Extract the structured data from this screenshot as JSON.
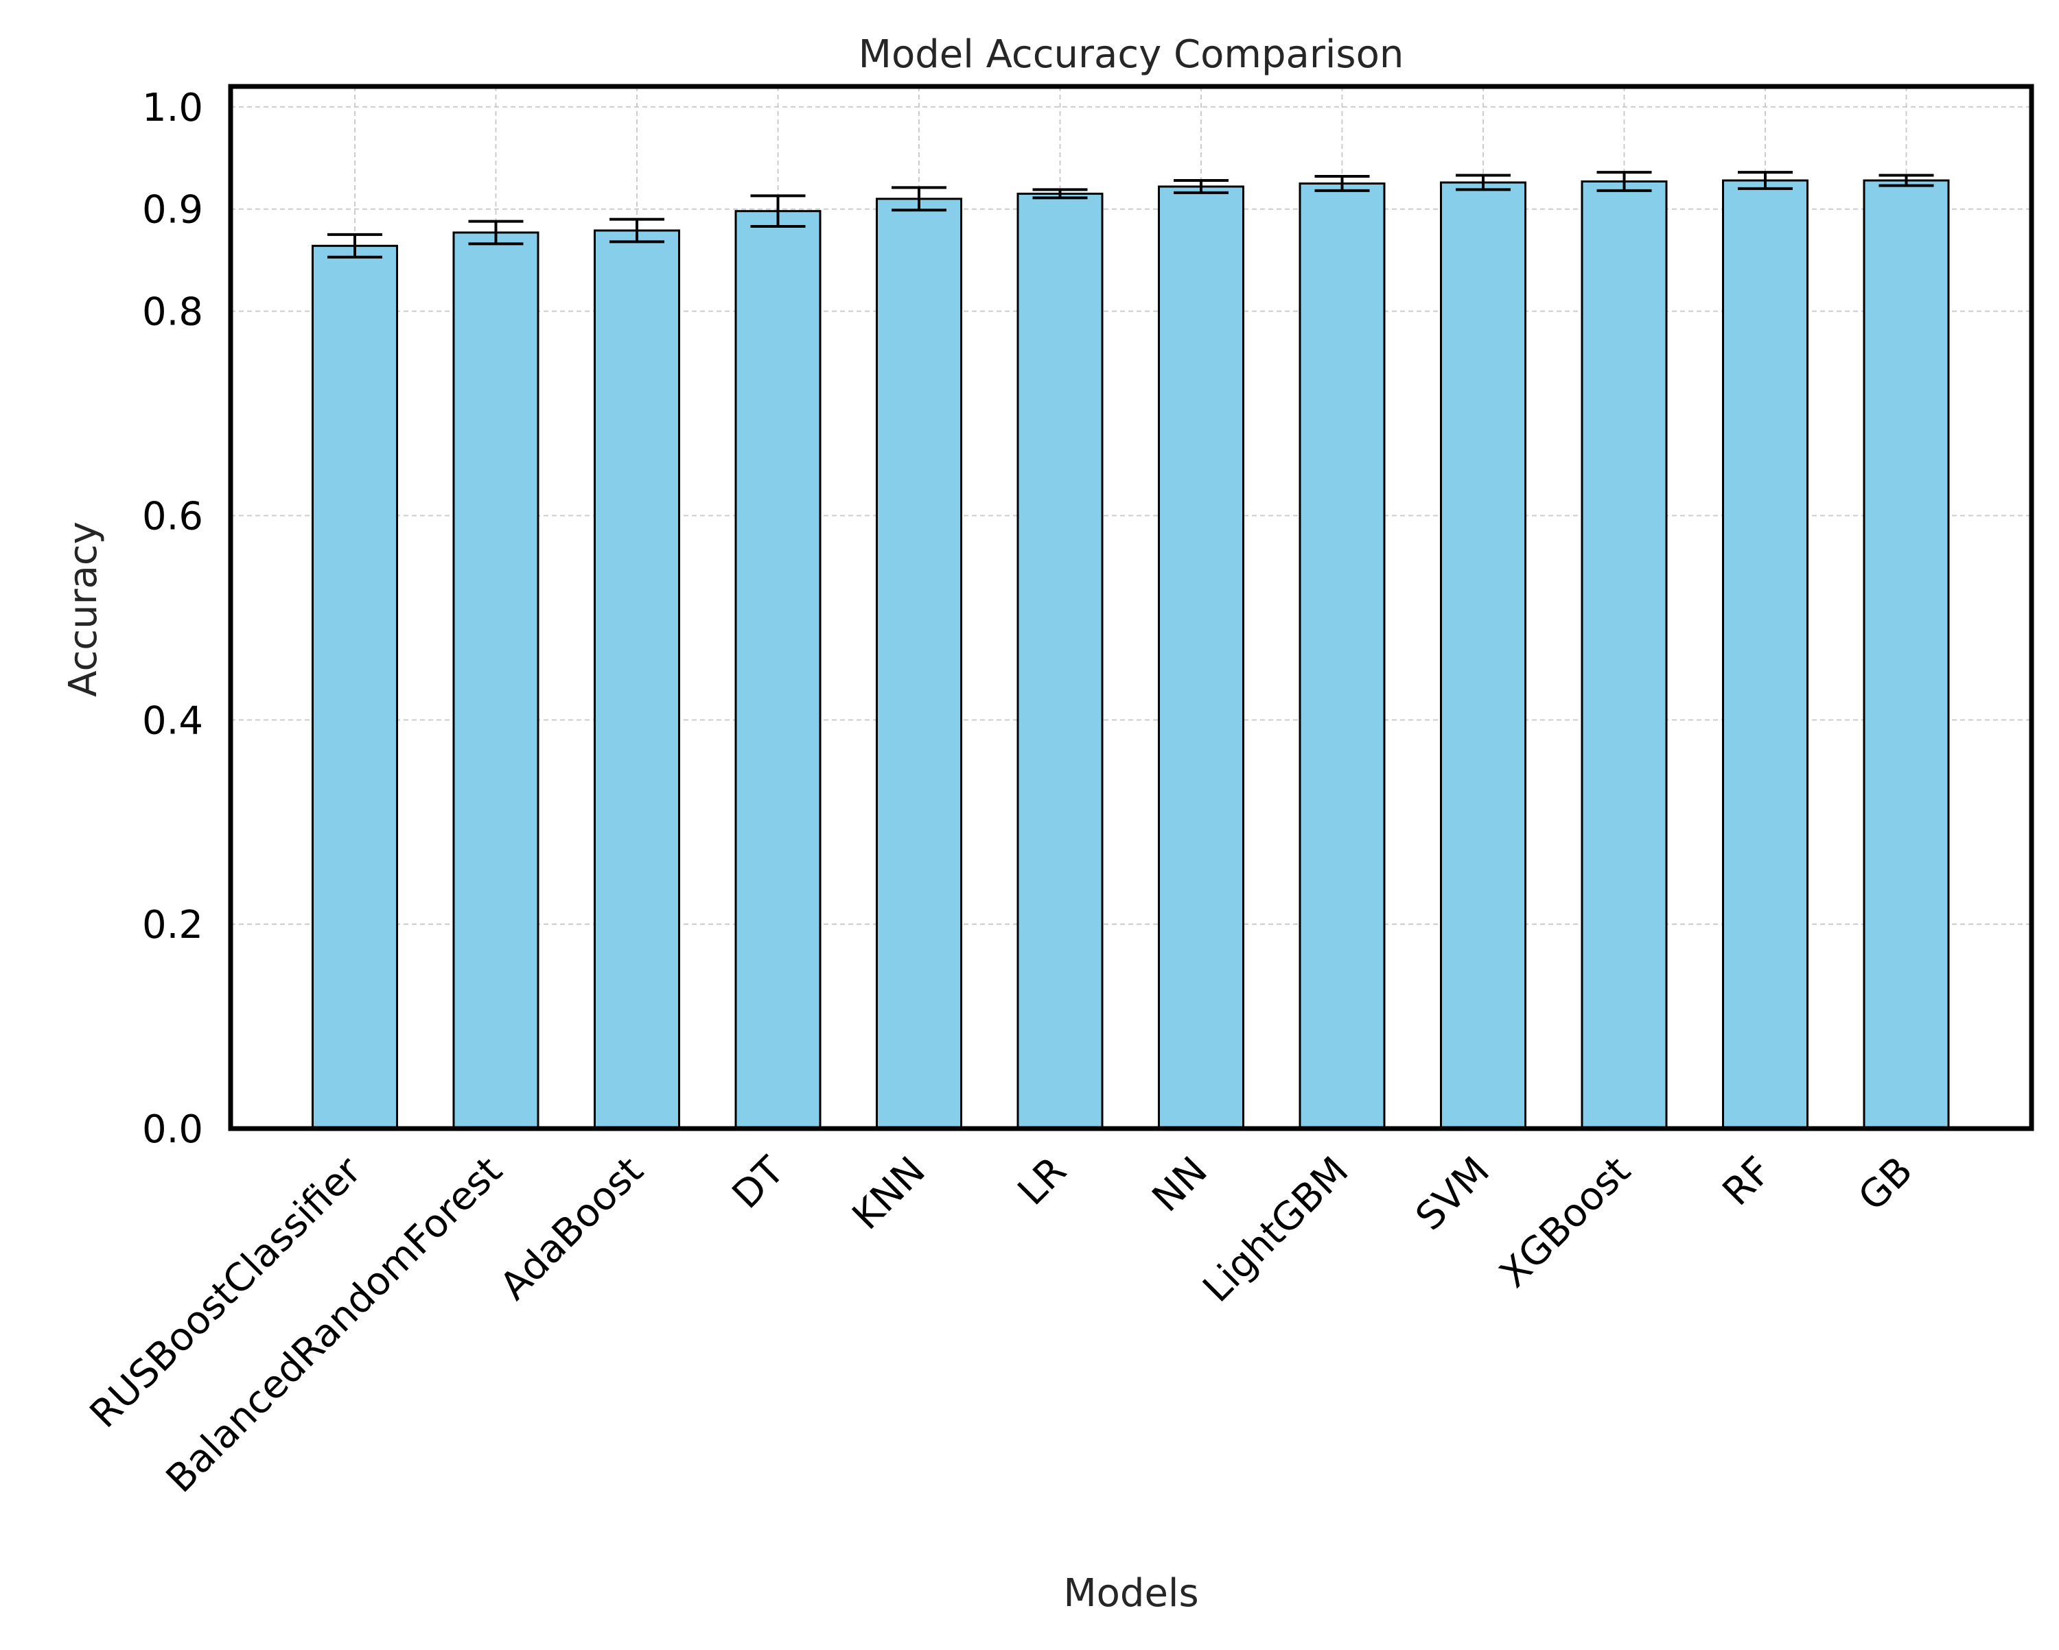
{
  "chart_data": {
    "type": "bar",
    "title": "Model Accuracy Comparison",
    "xlabel": "Models",
    "ylabel": "Accuracy",
    "categories": [
      "RUSBoostClassifier",
      "BalancedRandomForest",
      "AdaBoost",
      "DT",
      "KNN",
      "LR",
      "NN",
      "LightGBM",
      "SVM",
      "XGBoost",
      "RF",
      "GB"
    ],
    "values": [
      0.864,
      0.877,
      0.879,
      0.898,
      0.91,
      0.915,
      0.922,
      0.925,
      0.926,
      0.927,
      0.928,
      0.928
    ],
    "errors": [
      0.011,
      0.011,
      0.011,
      0.015,
      0.011,
      0.004,
      0.006,
      0.007,
      0.007,
      0.009,
      0.008,
      0.005
    ],
    "yticks": [
      "0.0",
      "0.2",
      "0.4",
      "0.6",
      "0.8",
      "0.9",
      "1.0"
    ],
    "ytick_values": [
      0.0,
      0.2,
      0.4,
      0.6,
      0.8,
      0.9,
      1.0
    ],
    "ylim": [
      0.0,
      1.02
    ],
    "grid": true,
    "bar_color": "#87CEEB",
    "edge_color": "#000000"
  }
}
